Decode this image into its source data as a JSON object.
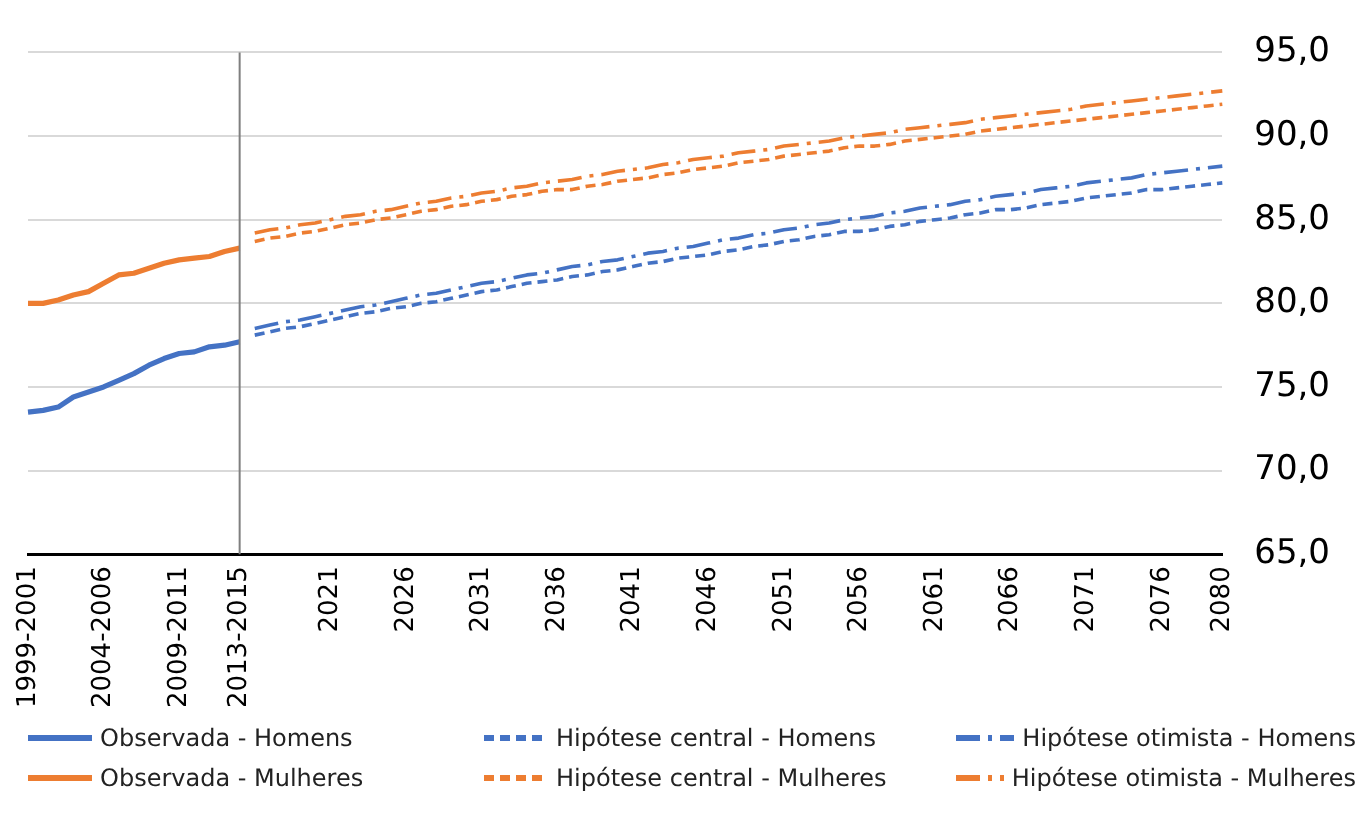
{
  "chart_data": {
    "type": "line",
    "categories": [
      "1999-2001",
      null,
      null,
      null,
      null,
      "2004-2006",
      null,
      null,
      null,
      null,
      "2009-2011",
      null,
      null,
      null,
      "2013-2015",
      null,
      null,
      null,
      null,
      null,
      "2021",
      null,
      null,
      null,
      null,
      "2026",
      null,
      null,
      null,
      null,
      "2031",
      null,
      null,
      null,
      null,
      "2036",
      null,
      null,
      null,
      null,
      "2041",
      null,
      null,
      null,
      null,
      "2046",
      null,
      null,
      null,
      null,
      "2051",
      null,
      null,
      null,
      null,
      "2056",
      null,
      null,
      null,
      null,
      "2061",
      null,
      null,
      null,
      null,
      "2066",
      null,
      null,
      null,
      null,
      "2071",
      null,
      null,
      null,
      null,
      "2076",
      null,
      null,
      null,
      "2080"
    ],
    "series": [
      {
        "name": "Observada - Homens",
        "color": "#4472c4",
        "line_style": "solid",
        "values": [
          73.5,
          73.6,
          73.8,
          74.4,
          74.7,
          75.0,
          75.4,
          75.8,
          76.3,
          76.7,
          77.0,
          77.1,
          77.4,
          77.5,
          77.7,
          null,
          null,
          null,
          null,
          null,
          null,
          null,
          null,
          null,
          null,
          null,
          null,
          null,
          null,
          null,
          null,
          null,
          null,
          null,
          null,
          null,
          null,
          null,
          null,
          null,
          null,
          null,
          null,
          null,
          null,
          null,
          null,
          null,
          null,
          null,
          null,
          null,
          null,
          null,
          null,
          null,
          null,
          null,
          null,
          null,
          null,
          null,
          null,
          null,
          null,
          null,
          null,
          null,
          null,
          null,
          null,
          null,
          null,
          null,
          null,
          null,
          null,
          null,
          null,
          null
        ]
      },
      {
        "name": "Hipótese central - Homens",
        "color": "#4472c4",
        "line_style": "dashed",
        "values": [
          null,
          null,
          null,
          null,
          null,
          null,
          null,
          null,
          null,
          null,
          null,
          null,
          null,
          null,
          null,
          78.1,
          78.3,
          78.5,
          78.6,
          78.8,
          79.0,
          79.2,
          79.4,
          79.5,
          79.7,
          79.8,
          80.0,
          80.1,
          80.3,
          80.5,
          80.7,
          80.8,
          81.0,
          81.2,
          81.3,
          81.4,
          81.6,
          81.7,
          81.9,
          82.0,
          82.2,
          82.4,
          82.5,
          82.7,
          82.8,
          82.9,
          83.1,
          83.2,
          83.4,
          83.5,
          83.7,
          83.8,
          84.0,
          84.1,
          84.3,
          84.3,
          84.4,
          84.6,
          84.7,
          84.9,
          85.0,
          85.1,
          85.3,
          85.4,
          85.6,
          85.6,
          85.7,
          85.9,
          86.0,
          86.1,
          86.3,
          86.4,
          86.5,
          86.6,
          86.8,
          86.8,
          86.9,
          87.0,
          87.1,
          87.2
        ]
      },
      {
        "name": "Hipótese otimista - Homens",
        "color": "#4472c4",
        "line_style": "dashdot",
        "values": [
          null,
          null,
          null,
          null,
          null,
          null,
          null,
          null,
          null,
          null,
          null,
          null,
          null,
          null,
          null,
          78.5,
          78.7,
          78.9,
          79.0,
          79.2,
          79.4,
          79.6,
          79.8,
          79.9,
          80.1,
          80.3,
          80.5,
          80.6,
          80.8,
          81.0,
          81.2,
          81.3,
          81.5,
          81.7,
          81.8,
          82.0,
          82.2,
          82.3,
          82.5,
          82.6,
          82.8,
          83.0,
          83.1,
          83.3,
          83.4,
          83.6,
          83.8,
          83.9,
          84.1,
          84.2,
          84.4,
          84.5,
          84.7,
          84.8,
          85.0,
          85.1,
          85.2,
          85.4,
          85.5,
          85.7,
          85.8,
          85.9,
          86.1,
          86.2,
          86.4,
          86.5,
          86.6,
          86.8,
          86.9,
          87.0,
          87.2,
          87.3,
          87.4,
          87.5,
          87.7,
          87.8,
          87.9,
          88.0,
          88.1,
          88.2
        ]
      },
      {
        "name": "Observada - Mulheres",
        "color": "#ed7d31",
        "line_style": "solid",
        "values": [
          80.0,
          80.0,
          80.2,
          80.5,
          80.7,
          81.2,
          81.7,
          81.8,
          82.1,
          82.4,
          82.6,
          82.7,
          82.8,
          83.1,
          83.3,
          null,
          null,
          null,
          null,
          null,
          null,
          null,
          null,
          null,
          null,
          null,
          null,
          null,
          null,
          null,
          null,
          null,
          null,
          null,
          null,
          null,
          null,
          null,
          null,
          null,
          null,
          null,
          null,
          null,
          null,
          null,
          null,
          null,
          null,
          null,
          null,
          null,
          null,
          null,
          null,
          null,
          null,
          null,
          null,
          null,
          null,
          null,
          null,
          null,
          null,
          null,
          null,
          null,
          null,
          null,
          null,
          null,
          null,
          null,
          null,
          null,
          null,
          null,
          null,
          null
        ]
      },
      {
        "name": "Hipótese central - Mulheres",
        "color": "#ed7d31",
        "line_style": "dashed",
        "values": [
          null,
          null,
          null,
          null,
          null,
          null,
          null,
          null,
          null,
          null,
          null,
          null,
          null,
          null,
          null,
          83.7,
          83.9,
          84.0,
          84.2,
          84.3,
          84.5,
          84.7,
          84.8,
          85.0,
          85.1,
          85.3,
          85.5,
          85.6,
          85.8,
          85.9,
          86.1,
          86.2,
          86.4,
          86.5,
          86.7,
          86.8,
          86.8,
          87.0,
          87.1,
          87.3,
          87.4,
          87.5,
          87.7,
          87.8,
          88.0,
          88.1,
          88.2,
          88.4,
          88.5,
          88.6,
          88.8,
          88.9,
          89.0,
          89.1,
          89.3,
          89.4,
          89.4,
          89.5,
          89.7,
          89.8,
          89.9,
          90.0,
          90.1,
          90.3,
          90.4,
          90.5,
          90.6,
          90.7,
          90.8,
          90.9,
          91.0,
          91.1,
          91.2,
          91.3,
          91.4,
          91.5,
          91.6,
          91.7,
          91.8,
          91.9
        ]
      },
      {
        "name": "Hipótese otimista - Mulheres",
        "color": "#ed7d31",
        "line_style": "dashdot",
        "values": [
          null,
          null,
          null,
          null,
          null,
          null,
          null,
          null,
          null,
          null,
          null,
          null,
          null,
          null,
          null,
          84.2,
          84.4,
          84.5,
          84.7,
          84.8,
          85.0,
          85.2,
          85.3,
          85.5,
          85.6,
          85.8,
          86.0,
          86.1,
          86.3,
          86.4,
          86.6,
          86.7,
          86.9,
          87.0,
          87.2,
          87.3,
          87.4,
          87.6,
          87.7,
          87.9,
          88.0,
          88.1,
          88.3,
          88.4,
          88.6,
          88.7,
          88.8,
          89.0,
          89.1,
          89.2,
          89.4,
          89.5,
          89.6,
          89.7,
          89.9,
          90.0,
          90.1,
          90.2,
          90.4,
          90.5,
          90.6,
          90.7,
          90.8,
          91.0,
          91.1,
          91.2,
          91.3,
          91.4,
          91.5,
          91.6,
          91.8,
          91.9,
          92.0,
          92.1,
          92.2,
          92.3,
          92.4,
          92.5,
          92.6,
          92.7
        ]
      }
    ],
    "ylim": [
      65,
      95
    ],
    "yticks": [
      {
        "value": 65,
        "label": "65,0"
      },
      {
        "value": 70,
        "label": "70,0"
      },
      {
        "value": 75,
        "label": "75,0"
      },
      {
        "value": 80,
        "label": "80,0"
      },
      {
        "value": 85,
        "label": "85,0"
      },
      {
        "value": 90,
        "label": "90,0"
      },
      {
        "value": 95,
        "label": "95,0"
      }
    ],
    "ref_lines": [
      {
        "axis": "x",
        "value": "2013-2015",
        "color": "#7f7f7f"
      }
    ],
    "grid": "y",
    "legend": "bottom",
    "marker": "none"
  }
}
